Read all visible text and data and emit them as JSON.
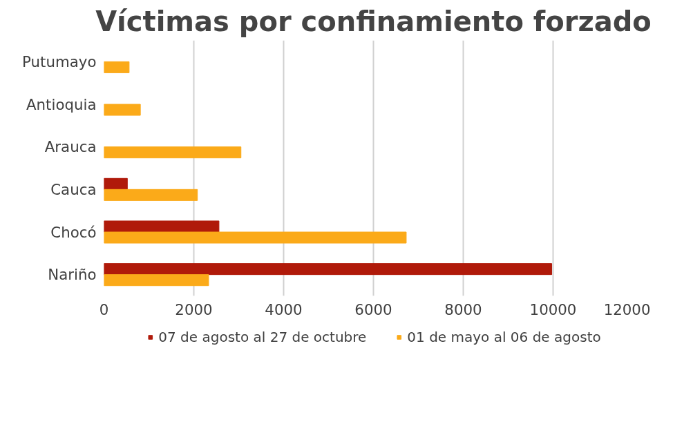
{
  "chart_data": {
    "type": "bar",
    "orientation": "horizontal",
    "title": "Víctimas por confinamiento forzado",
    "categories": [
      "Putumayo",
      "Antioquia",
      "Arauca",
      "Cauca",
      "Chocó",
      "Nariño"
    ],
    "series": [
      {
        "name": "07 de agosto al 27 de octubre",
        "color": "#b01a0a",
        "values": [
          null,
          null,
          null,
          520,
          2560,
          9970
        ]
      },
      {
        "name": "01 de mayo al 06 de agosto",
        "color": "#fbaa19",
        "values": [
          560,
          810,
          3050,
          2080,
          6730,
          2330
        ]
      }
    ],
    "xlim": [
      0,
      12000
    ],
    "xticks": [
      0,
      2000,
      4000,
      6000,
      8000,
      10000,
      12000
    ],
    "grid": "x",
    "legend": "bottom"
  }
}
